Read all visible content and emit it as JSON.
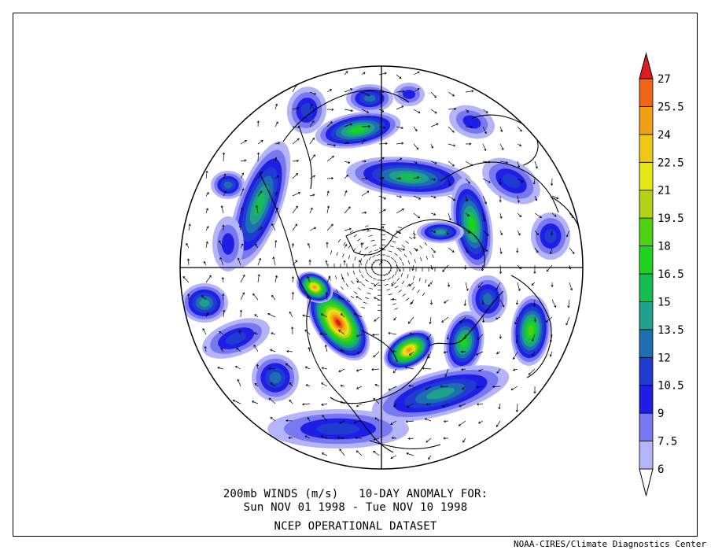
{
  "figure": {
    "caption_line1": "200mb WINDS (m/s)   10-DAY ANOMALY FOR:",
    "caption_line2": "Sun NOV 01 1998 - Tue NOV 10 1998",
    "caption_line3": "NCEP OPERATIONAL DATASET",
    "credit": "NOAA-CIRES/Climate Diagnostics Center"
  },
  "projection": "north polar stereographic",
  "colorbar": {
    "levels": [
      6,
      7.5,
      9,
      10.5,
      12,
      13.5,
      15,
      16.5,
      18,
      19.5,
      21,
      22.5,
      24,
      25.5,
      27
    ],
    "labels": [
      "6",
      "7.5",
      "9",
      "10.5",
      "12",
      "13.5",
      "15",
      "16.5",
      "18",
      "19.5",
      "21",
      "22.5",
      "24",
      "25.5",
      "27"
    ],
    "colors": [
      "#b4b4fa",
      "#7878f0",
      "#1e1ee6",
      "#1e3cd2",
      "#1e6eb4",
      "#1ea08c",
      "#14be50",
      "#1ed21e",
      "#50d214",
      "#b4d214",
      "#e6e614",
      "#f0c814",
      "#f0a014",
      "#f06414",
      "#dc1e1e"
    ]
  }
}
